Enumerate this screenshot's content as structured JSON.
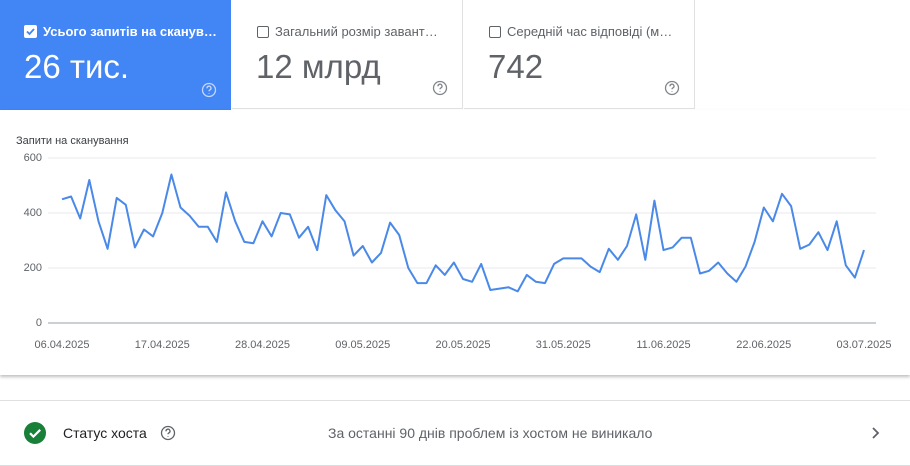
{
  "cards": [
    {
      "label": "Усього запитів на сканув…",
      "value": "26 тис."
    },
    {
      "label": "Загальний розмір завант…",
      "value": "12 млрд"
    },
    {
      "label": "Середній час відповіді (м…",
      "value": "742"
    }
  ],
  "chart_data": {
    "type": "line",
    "y_label": "Запити на сканування",
    "color": "#4a89e8",
    "grid": true,
    "categories": [
      "06.04.2025",
      null,
      null,
      null,
      null,
      null,
      null,
      null,
      null,
      null,
      null,
      "17.04.2025",
      null,
      null,
      null,
      null,
      null,
      null,
      null,
      null,
      null,
      null,
      "28.04.2025",
      null,
      null,
      null,
      null,
      null,
      null,
      null,
      null,
      null,
      null,
      "09.05.2025",
      null,
      null,
      null,
      null,
      null,
      null,
      null,
      null,
      null,
      null,
      "20.05.2025",
      null,
      null,
      null,
      null,
      null,
      null,
      null,
      null,
      null,
      null,
      "31.05.2025",
      null,
      null,
      null,
      null,
      null,
      null,
      null,
      null,
      null,
      null,
      "11.06.2025",
      null,
      null,
      null,
      null,
      null,
      null,
      null,
      null,
      null,
      null,
      "22.06.2025",
      null,
      null,
      null,
      null,
      null,
      null,
      null,
      null,
      null,
      null,
      "03.07.2025"
    ],
    "values": [
      450,
      460,
      380,
      520,
      370,
      270,
      455,
      430,
      275,
      340,
      315,
      400,
      540,
      420,
      390,
      350,
      350,
      295,
      475,
      370,
      295,
      290,
      370,
      315,
      400,
      395,
      310,
      350,
      265,
      465,
      410,
      370,
      245,
      280,
      220,
      255,
      365,
      320,
      200,
      145,
      145,
      210,
      175,
      220,
      160,
      150,
      215,
      120,
      125,
      130,
      115,
      175,
      150,
      145,
      215,
      235,
      235,
      235,
      205,
      185,
      270,
      230,
      280,
      395,
      230,
      445,
      265,
      275,
      310,
      310,
      180,
      190,
      220,
      180,
      150,
      205,
      295,
      420,
      370,
      470,
      425,
      270,
      285,
      330,
      265,
      370,
      210,
      165,
      265
    ],
    "ylim": [
      0,
      600
    ],
    "yticks": [
      0,
      200,
      400,
      600
    ]
  },
  "host_status": {
    "title": "Статус хоста",
    "message": "За останні 90 днів проблем із хостом не виникало"
  }
}
